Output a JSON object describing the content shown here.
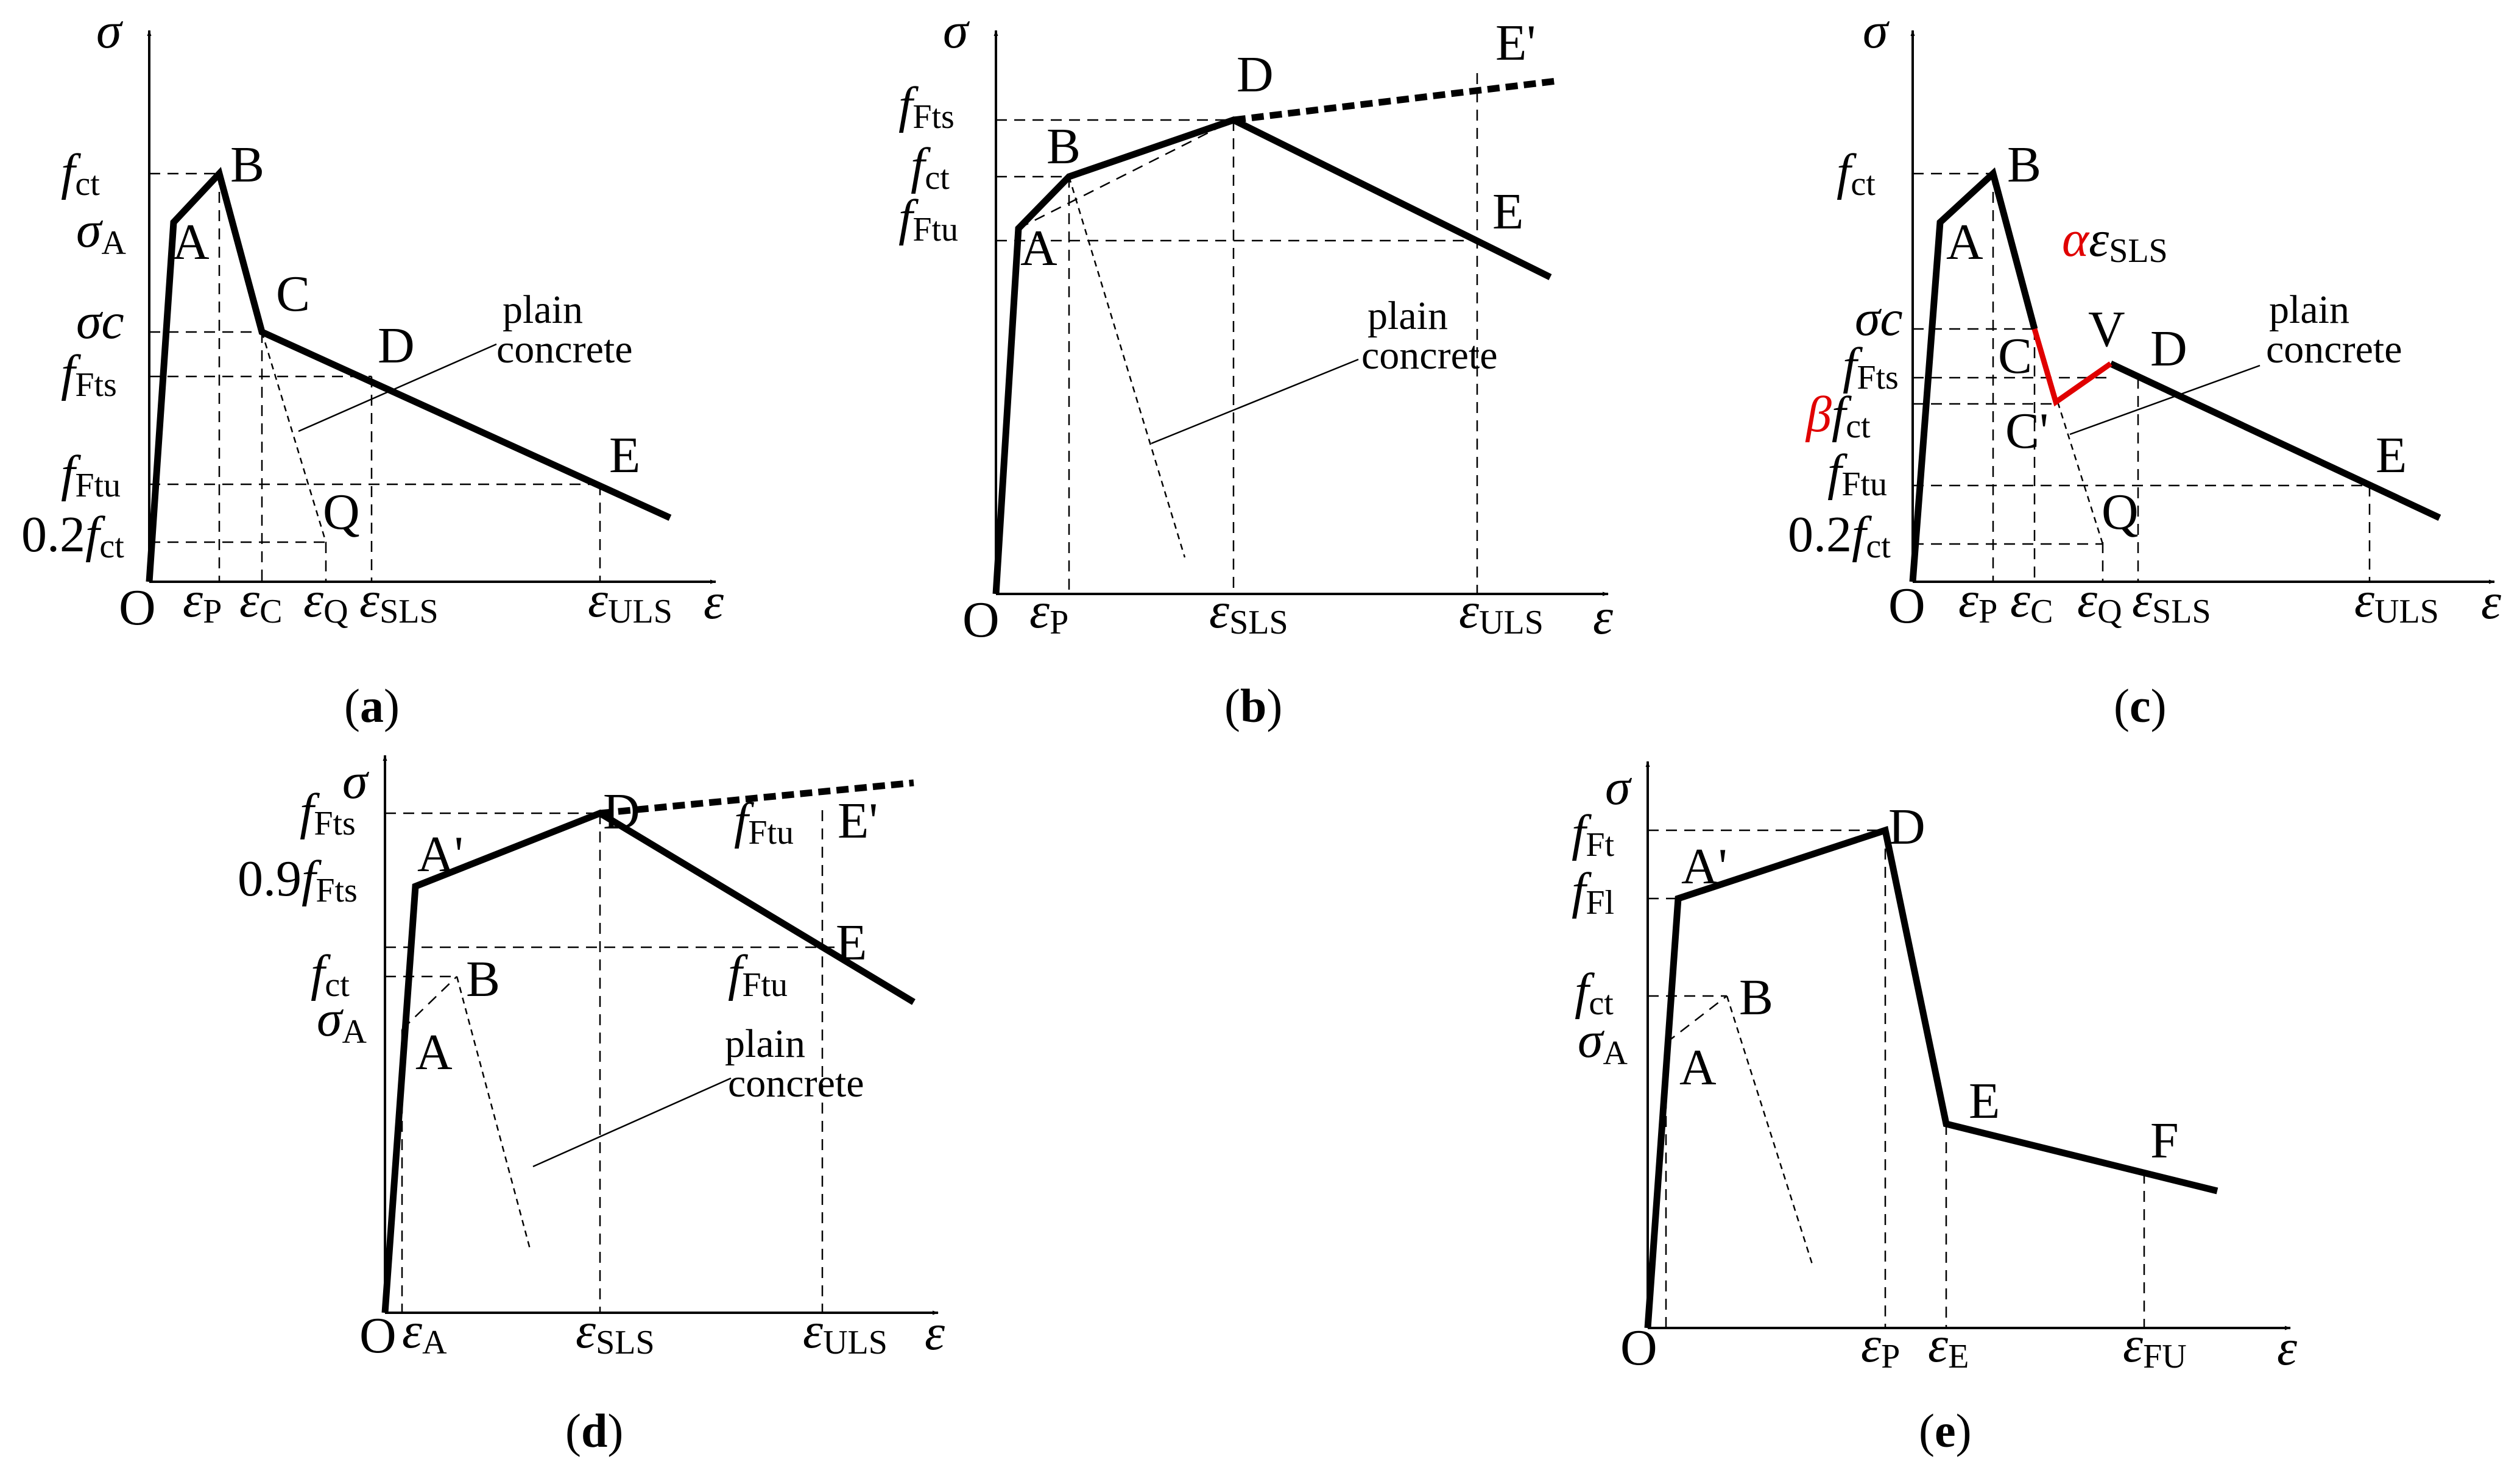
{
  "panels": {
    "a": {
      "caption": "a",
      "axis_y": "σ",
      "axis_x": "ε",
      "origin": "O",
      "y_labels": {
        "fct_f": "f",
        "fct_s": "ct",
        "sigmaA_s": "σ",
        "sigmaA_b": "A",
        "sigmac": "σc",
        "fFts_f": "f",
        "fFts_s": "Fts",
        "fFtu_f": "f",
        "fFtu_s": "Ftu",
        "p2_pre": "0.2",
        "p2_f": "f",
        "p2_s": "ct"
      },
      "x_labels": {
        "eP_e": "ε",
        "eP_s": "P",
        "eC_e": "ε",
        "eC_s": "C",
        "eQ_e": "ε",
        "eQ_s": "Q",
        "eSLS_e": "ε",
        "eSLS_s": "SLS",
        "eULS_e": "ε",
        "eULS_s": "ULS"
      },
      "points": {
        "A": "A",
        "B": "B",
        "C": "C",
        "D": "D",
        "E": "E",
        "Q": "Q"
      },
      "note_l1": "plain",
      "note_l2": "concrete"
    },
    "b": {
      "caption": "b",
      "axis_y": "σ",
      "axis_x": "ε",
      "origin": "O",
      "y_labels": {
        "fFts_f": "f",
        "fFts_s": "Fts",
        "fct_f": "f",
        "fct_s": "ct",
        "fFtu_f": "f",
        "fFtu_s": "Ftu"
      },
      "x_labels": {
        "eP_e": "ε",
        "eP_s": "P",
        "eSLS_e": "ε",
        "eSLS_s": "SLS",
        "eULS_e": "ε",
        "eULS_s": "ULS"
      },
      "points": {
        "A": "A",
        "B": "B",
        "D": "D",
        "E": "E",
        "Ep": "E'"
      },
      "note_l1": "plain",
      "note_l2": "concrete"
    },
    "c": {
      "caption": "c",
      "axis_y": "σ",
      "axis_x": "ε",
      "origin": "O",
      "y_labels": {
        "fct_f": "f",
        "fct_s": "ct",
        "sigmac": "σc",
        "fFts_f": "f",
        "fFts_s": "Fts",
        "beta": "β",
        "beta_f": "f",
        "beta_s": "ct",
        "fFtu_f": "f",
        "fFtu_s": "Ftu",
        "p2_pre": "0.2",
        "p2_f": "f",
        "p2_s": "ct"
      },
      "x_labels": {
        "eP_e": "ε",
        "eP_s": "P",
        "eC_e": "ε",
        "eC_s": "C",
        "eQ_e": "ε",
        "eQ_s": "Q",
        "eSLS_e": "ε",
        "eSLS_s": "SLS",
        "eULS_e": "ε",
        "eULS_s": "ULS"
      },
      "points": {
        "A": "A",
        "B": "B",
        "C": "C",
        "Cp": "C'",
        "V": "V",
        "D": "D",
        "E": "E",
        "Q": "Q"
      },
      "alpha_a": "α",
      "alpha_e": "ε",
      "alpha_s": "SLS",
      "note_l1": "plain",
      "note_l2": "concrete"
    },
    "d": {
      "caption": "d",
      "axis_y": "σ",
      "axis_x": "ε",
      "origin": "O",
      "y_labels": {
        "fFts_f": "f",
        "fFts_s": "Fts",
        "p9_pre": "0.9",
        "p9_f": "f",
        "p9_s": "Fts",
        "fct_f": "f",
        "fct_s": "ct",
        "sigmaA_s": "σ",
        "sigmaA_b": "A"
      },
      "x_labels": {
        "eA_e": "ε",
        "eA_s": "A",
        "eSLS_e": "ε",
        "eSLS_s": "SLS",
        "eULS_e": "ε",
        "eULS_s": "ULS"
      },
      "inner_labels": {
        "fFtu1_f": "f",
        "fFtu1_s": "Ftu",
        "fFtu2_f": "f",
        "fFtu2_s": "Ftu"
      },
      "points": {
        "A": "A",
        "Ap": "A'",
        "B": "B",
        "D": "D",
        "E": "E",
        "Ep": "E'"
      },
      "note_l1": "plain",
      "note_l2": "concrete"
    },
    "e": {
      "caption": "e",
      "axis_y": "σ",
      "axis_x": "ε",
      "origin": "O",
      "y_labels": {
        "fFt_f": "f",
        "fFt_s": "Ft",
        "fFl_f": "f",
        "fFl_s": "Fl",
        "fct_f": "f",
        "fct_s": "ct",
        "sigmaA_s": "σ",
        "sigmaA_b": "A"
      },
      "x_labels": {
        "eP_e": "ε",
        "eP_s": "P",
        "eE_e": "ε",
        "eE_s": "E",
        "eFU_e": "ε",
        "eFU_s": "FU"
      },
      "points": {
        "A": "A",
        "Ap": "A'",
        "B": "B",
        "D": "D",
        "E": "E",
        "F": "F"
      }
    }
  }
}
